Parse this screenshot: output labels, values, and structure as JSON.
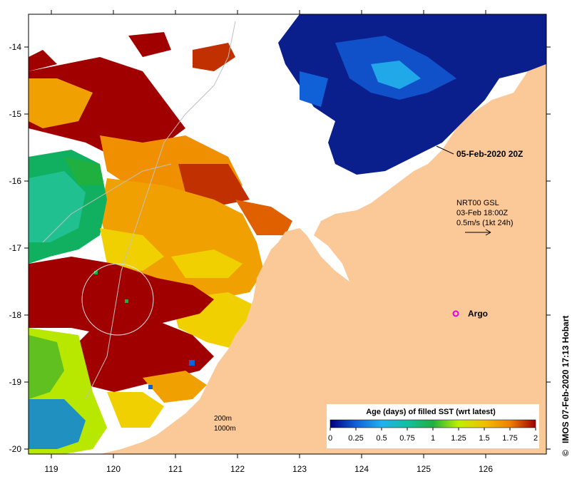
{
  "map": {
    "lon_ticks": [
      "119",
      "120",
      "121",
      "122",
      "123",
      "124",
      "125",
      "126"
    ],
    "lat_ticks": [
      "-14",
      "-15",
      "-16",
      "-17",
      "-18",
      "-19",
      "-20"
    ],
    "timestamp_label": "05-Feb-2020 20Z",
    "current_info": {
      "line1": "NRT00 GSL",
      "line2": "03-Feb 18:00Z",
      "line3": "0.5m/s (1kt 24h)"
    },
    "argo_label": "Argo",
    "contours": {
      "label_200m": "200m",
      "label_1000m": "1000m"
    },
    "legend": {
      "title": "Age (days) of filled SST (wrt latest)",
      "ticks": [
        "0",
        "0.25",
        "0.5",
        "0.75",
        "1",
        "1.25",
        "1.5",
        "1.75",
        "2"
      ]
    },
    "credit": "IMOS 07-Feb-2020 17:13 Hobart",
    "colors": {
      "land": "#fbc898",
      "age_0": "#000080",
      "age_025": "#1060d8",
      "age_05": "#20b0f0",
      "age_075": "#10c0a0",
      "age_1": "#20b040",
      "age_125": "#c0f000",
      "age_15": "#f0c000",
      "age_175": "#f08000",
      "age_2": "#a00000",
      "argo": "#e000e0"
    }
  }
}
